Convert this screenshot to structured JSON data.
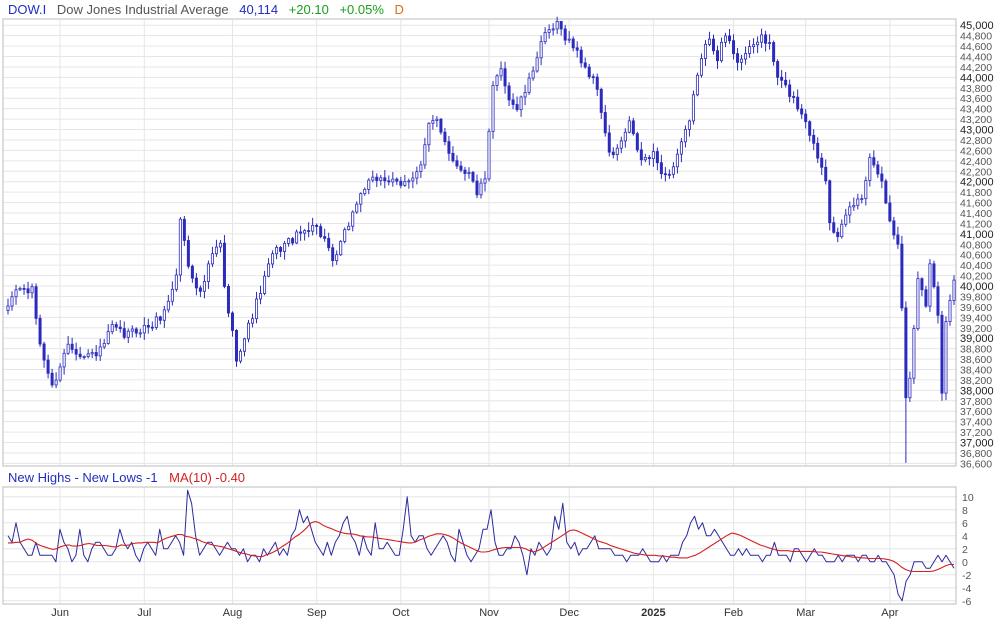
{
  "header": {
    "symbol": "DOW.I",
    "name": "Dow Jones Industrial Average",
    "last": "40,114",
    "change": "+20.10",
    "change_pct": "+0.05%",
    "period": "D"
  },
  "indicator": {
    "label": "New Highs - New Lows -1",
    "ma_label": "MA(10) -0.40"
  },
  "colors": {
    "candle": "#2b2bbd",
    "nhnl_line": "#2b2b9e",
    "ma_line": "#d42020",
    "symbol": "#1f2fbf",
    "name": "#555555",
    "last": "#1f2fbf",
    "change": "#18a018",
    "period": "#e07010",
    "ma_label": "#d42020",
    "grid": "#e6e6e6"
  },
  "chart_data": [
    {
      "type": "candlestick",
      "y_ticks": [
        36600,
        36800,
        37000,
        37200,
        37400,
        37600,
        37800,
        38000,
        38200,
        38400,
        38600,
        38800,
        39000,
        39200,
        39400,
        39600,
        39800,
        40000,
        40200,
        40400,
        40600,
        40800,
        41000,
        41200,
        41400,
        41600,
        41800,
        42000,
        42200,
        42400,
        42600,
        42800,
        43000,
        43200,
        43400,
        43600,
        43800,
        44000,
        44200,
        44400,
        44600,
        44800,
        45000
      ],
      "y_tick_labels": [
        "36,600",
        "36,800",
        "37,000",
        "37,200",
        "37,400",
        "37,600",
        "37,800",
        "38,000",
        "38,200",
        "38,400",
        "38,600",
        "38,800",
        "39,000",
        "39,200",
        "39,400",
        "39,600",
        "39,800",
        "40,000",
        "40,200",
        "40,400",
        "40,600",
        "40,800",
        "41,000",
        "41,200",
        "41,400",
        "41,600",
        "41,800",
        "42,000",
        "42,200",
        "42,400",
        "42,600",
        "42,800",
        "43,000",
        "43,200",
        "43,400",
        "43,600",
        "43,800",
        "44,000",
        "44,200",
        "44,400",
        "44,600",
        "44,800",
        "45,000"
      ],
      "ylim": [
        36550,
        45100
      ],
      "x_tick_labels": [
        "Jun",
        "Jul",
        "Aug",
        "Sep",
        "Oct",
        "Nov",
        "Dec",
        "2025",
        "Feb",
        "Mar",
        "Apr"
      ],
      "x_tick_index": [
        13,
        34,
        56,
        77,
        98,
        120,
        140,
        161,
        181,
        199,
        220
      ],
      "x_tick_year": [
        false,
        false,
        false,
        false,
        false,
        false,
        false,
        true,
        false,
        false,
        false
      ],
      "n": 237,
      "keypoints": [
        [
          0,
          39450
        ],
        [
          3,
          39950
        ],
        [
          7,
          39900
        ],
        [
          9,
          38900
        ],
        [
          12,
          38050
        ],
        [
          16,
          38900
        ],
        [
          20,
          38650
        ],
        [
          24,
          38750
        ],
        [
          27,
          39200
        ],
        [
          30,
          39050
        ],
        [
          33,
          39150
        ],
        [
          37,
          39250
        ],
        [
          40,
          39500
        ],
        [
          43,
          40200
        ],
        [
          44,
          41300
        ],
        [
          46,
          40400
        ],
        [
          49,
          39850
        ],
        [
          52,
          40600
        ],
        [
          54,
          40800
        ],
        [
          55,
          39950
        ],
        [
          58,
          38650
        ],
        [
          60,
          39000
        ],
        [
          64,
          39900
        ],
        [
          67,
          40600
        ],
        [
          70,
          40800
        ],
        [
          74,
          41000
        ],
        [
          77,
          41200
        ],
        [
          80,
          40900
        ],
        [
          82,
          40400
        ],
        [
          86,
          41200
        ],
        [
          88,
          41600
        ],
        [
          90,
          41900
        ],
        [
          94,
          42100
        ],
        [
          99,
          41900
        ],
        [
          104,
          42300
        ],
        [
          106,
          43050
        ],
        [
          108,
          43200
        ],
        [
          112,
          42400
        ],
        [
          116,
          42150
        ],
        [
          118,
          41800
        ],
        [
          120,
          42000
        ],
        [
          122,
          43800
        ],
        [
          124,
          44200
        ],
        [
          126,
          43600
        ],
        [
          128,
          43400
        ],
        [
          131,
          43900
        ],
        [
          134,
          44700
        ],
        [
          138,
          45000
        ],
        [
          142,
          44600
        ],
        [
          145,
          44200
        ],
        [
          148,
          43800
        ],
        [
          151,
          42500
        ],
        [
          153,
          42600
        ],
        [
          156,
          43100
        ],
        [
          159,
          42400
        ],
        [
          162,
          42500
        ],
        [
          165,
          42100
        ],
        [
          167,
          42300
        ],
        [
          169,
          42750
        ],
        [
          171,
          43100
        ],
        [
          173,
          44100
        ],
        [
          176,
          44800
        ],
        [
          178,
          44400
        ],
        [
          180,
          44800
        ],
        [
          183,
          44350
        ],
        [
          186,
          44500
        ],
        [
          189,
          44800
        ],
        [
          191,
          44600
        ],
        [
          193,
          44000
        ],
        [
          196,
          43700
        ],
        [
          200,
          43200
        ],
        [
          202,
          42700
        ],
        [
          205,
          42100
        ],
        [
          206,
          41300
        ],
        [
          208,
          40900
        ],
        [
          211,
          41500
        ],
        [
          214,
          41700
        ],
        [
          216,
          42500
        ],
        [
          217,
          42300
        ],
        [
          219,
          42100
        ],
        [
          221,
          41200
        ],
        [
          223,
          40800
        ],
        [
          224,
          39600
        ],
        [
          225,
          37900
        ],
        [
          226,
          38200
        ],
        [
          228,
          40200
        ],
        [
          230,
          39700
        ],
        [
          231,
          40400
        ],
        [
          233,
          39500
        ],
        [
          234,
          38000
        ],
        [
          235,
          39400
        ],
        [
          236,
          39700
        ],
        [
          237,
          40114
        ]
      ],
      "low": 36611,
      "high": 45073
    },
    {
      "type": "line",
      "series": [
        {
          "name": "New Highs - New Lows -1",
          "color": "#2b2b9e"
        },
        {
          "name": "MA(10)",
          "color": "#d42020"
        }
      ],
      "y_ticks": [
        -6,
        -4,
        -2,
        0,
        2,
        4,
        6,
        8,
        10
      ],
      "y_tick_labels": [
        "-6",
        "-4",
        "-2",
        "0",
        "2",
        "4",
        "6",
        "8",
        "10"
      ],
      "ylim": [
        -6.5,
        11.5
      ],
      "nhnl": [
        4,
        3,
        6,
        3,
        2,
        1,
        1,
        3,
        1,
        1,
        1,
        1,
        0,
        5,
        3,
        2,
        0,
        1,
        5,
        1,
        0,
        2,
        3,
        3,
        2,
        1,
        1,
        2,
        5,
        3,
        2,
        3,
        1,
        0,
        2,
        3,
        2,
        1,
        5,
        2,
        2,
        3,
        4,
        3,
        1,
        11,
        9,
        4,
        1,
        2,
        3,
        3,
        2,
        1,
        2,
        3,
        2,
        2,
        1,
        2,
        0,
        1,
        1,
        0,
        2,
        1,
        2,
        3,
        1,
        2,
        1,
        4,
        5,
        8,
        6,
        7,
        5,
        3,
        2,
        1,
        3,
        1,
        3,
        4,
        6,
        7,
        4,
        3,
        1,
        4,
        2,
        1,
        6,
        2,
        2,
        3,
        2,
        1,
        1,
        5,
        10,
        4,
        3,
        4,
        4,
        2,
        1,
        2,
        3,
        4,
        3,
        1,
        0,
        5,
        3,
        1,
        0,
        1,
        2,
        5,
        5,
        8,
        3,
        1,
        1,
        2,
        2,
        4,
        3,
        1,
        -2,
        2,
        1,
        3,
        2,
        1,
        2,
        7,
        5,
        9,
        3,
        2,
        3,
        1,
        2,
        2,
        3,
        4,
        2,
        2,
        2,
        2,
        1,
        1,
        1,
        0,
        1,
        1,
        1,
        2,
        1,
        0,
        0,
        0,
        1,
        0,
        1,
        1,
        1,
        3,
        4,
        6,
        7,
        5,
        6,
        4,
        4,
        5,
        4,
        3,
        2,
        1,
        1,
        2,
        1,
        2,
        1,
        1,
        1,
        0,
        1,
        1,
        3,
        1,
        1,
        1,
        0,
        2,
        2,
        1,
        0,
        1,
        2,
        1,
        1,
        0,
        0,
        0,
        1,
        0,
        1,
        1,
        1,
        0,
        1,
        1,
        0,
        0,
        1,
        0,
        0,
        -1,
        -2,
        -5,
        -6,
        -3,
        -2,
        0,
        0,
        0,
        -1,
        -1,
        0,
        1,
        0,
        1,
        0,
        -1
      ],
      "ma10": [
        2.9,
        2.9,
        3.0,
        3.0,
        3.3,
        3.5,
        3.3,
        2.8,
        2.5,
        2.3,
        2.1,
        1.9,
        2.0,
        2.3,
        2.5,
        2.6,
        2.4,
        2.4,
        2.5,
        2.7,
        2.8,
        2.7,
        2.5,
        2.5,
        2.5,
        2.4,
        2.3,
        2.3,
        2.6,
        2.5,
        2.6,
        2.8,
        2.9,
        2.9,
        3.0,
        3.0,
        3.0,
        2.9,
        3.3,
        3.6,
        3.8,
        4.0,
        4.2,
        4.2,
        3.9,
        3.8,
        3.6,
        3.4,
        3.1,
        2.9,
        2.7,
        2.5,
        2.4,
        2.3,
        2.1,
        1.9,
        1.7,
        1.5,
        1.3,
        1.2,
        1.0,
        0.9,
        0.8,
        0.8,
        1.1,
        1.3,
        1.6,
        2.0,
        2.4,
        2.8,
        3.3,
        3.8,
        4.2,
        4.7,
        5.3,
        6.0,
        6.2,
        6.0,
        5.6,
        5.3,
        5.1,
        4.8,
        4.6,
        4.4,
        4.3,
        4.3,
        4.2,
        4.0,
        3.9,
        3.8,
        3.8,
        3.7,
        3.6,
        3.5,
        3.4,
        3.3,
        3.2,
        3.1,
        3.0,
        2.9,
        2.9,
        3.1,
        3.4,
        3.6,
        3.9,
        4.1,
        4.3,
        4.3,
        4.2,
        4.0,
        3.7,
        3.3,
        2.9,
        2.6,
        2.3,
        2.0,
        1.7,
        1.5,
        1.5,
        1.6,
        1.8,
        2.0,
        2.1,
        2.2,
        2.2,
        2.2,
        2.2,
        2.2,
        2.0,
        1.7,
        1.5,
        1.7,
        2.0,
        2.4,
        2.8,
        3.2,
        3.6,
        4.0,
        4.4,
        4.8,
        4.9,
        4.7,
        4.4,
        4.1,
        3.8,
        3.5,
        3.2,
        3.0,
        2.8,
        2.5,
        2.3,
        2.1,
        1.9,
        1.7,
        1.5,
        1.3,
        1.2,
        1.1,
        1.0,
        1.0,
        1.0,
        0.9,
        0.9,
        0.8,
        0.7,
        0.7,
        0.6,
        0.6,
        0.6,
        0.8,
        1.0,
        1.3,
        1.7,
        2.1,
        2.5,
        2.9,
        3.3,
        3.7,
        4.1,
        4.4,
        4.3,
        4.1,
        3.8,
        3.5,
        3.2,
        2.9,
        2.6,
        2.4,
        2.2,
        2.0,
        1.8,
        1.7,
        1.7,
        1.7,
        1.6,
        1.6,
        1.6,
        1.6,
        1.6,
        1.6,
        1.5,
        1.5,
        1.4,
        1.3,
        1.2,
        1.1,
        1.0,
        0.9,
        0.8,
        0.7,
        0.7,
        0.6,
        0.6,
        0.5,
        0.5,
        0.5,
        0.5,
        0.4,
        0.3,
        0.1,
        -0.3,
        -0.8,
        -1.2,
        -1.4,
        -1.5,
        -1.5,
        -1.5,
        -1.5,
        -1.5,
        -1.4,
        -1.2,
        -0.9,
        -0.6,
        -0.4,
        -0.4
      ]
    }
  ]
}
